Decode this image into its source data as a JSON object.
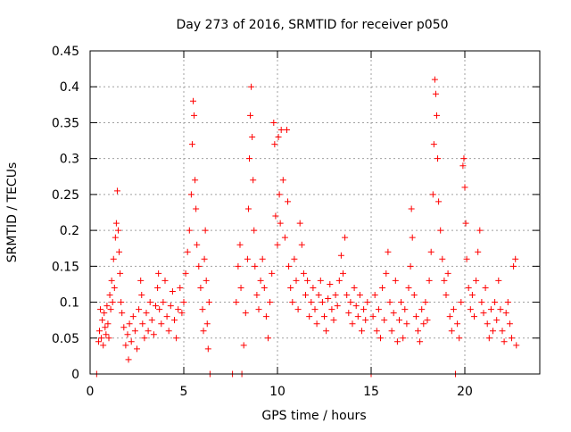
{
  "chart_data": {
    "type": "scatter",
    "title": "Day 273 of 2016, SRMTID for receiver p050",
    "xlabel": "GPS time / hours",
    "ylabel": "SRMTID / TECUs",
    "xlim": [
      0,
      24
    ],
    "ylim": [
      0,
      0.45
    ],
    "xticks": [
      0,
      5,
      10,
      15,
      20
    ],
    "yticks": [
      0,
      0.05,
      0.1,
      0.15,
      0.2,
      0.25,
      0.3,
      0.35,
      0.4,
      0.45
    ],
    "xtick_labels": [
      "0",
      "5",
      "10",
      "15",
      "20"
    ],
    "ytick_labels": [
      "0",
      "0.05",
      "0.1",
      "0.15",
      "0.2",
      "0.25",
      "0.3",
      "0.35",
      "0.4",
      "0.45"
    ],
    "grid": true,
    "marker": "+",
    "color": "#ff0000",
    "series": [
      {
        "name": "SRMTID",
        "points": [
          [
            0.35,
            0.0
          ],
          [
            0.45,
            0.045
          ],
          [
            0.5,
            0.06
          ],
          [
            0.55,
            0.09
          ],
          [
            0.6,
            0.05
          ],
          [
            0.65,
            0.075
          ],
          [
            0.7,
            0.04
          ],
          [
            0.75,
            0.085
          ],
          [
            0.8,
            0.065
          ],
          [
            0.85,
            0.055
          ],
          [
            0.9,
            0.095
          ],
          [
            0.95,
            0.07
          ],
          [
            1.0,
            0.05
          ],
          [
            1.05,
            0.11
          ],
          [
            1.1,
            0.09
          ],
          [
            1.15,
            0.13
          ],
          [
            1.2,
            0.1
          ],
          [
            1.25,
            0.16
          ],
          [
            1.3,
            0.12
          ],
          [
            1.35,
            0.19
          ],
          [
            1.4,
            0.21
          ],
          [
            1.45,
            0.255
          ],
          [
            1.5,
            0.2
          ],
          [
            1.55,
            0.17
          ],
          [
            1.6,
            0.14
          ],
          [
            1.65,
            0.1
          ],
          [
            1.7,
            0.085
          ],
          [
            1.8,
            0.065
          ],
          [
            1.9,
            0.04
          ],
          [
            2.0,
            0.055
          ],
          [
            2.05,
            0.02
          ],
          [
            2.1,
            0.07
          ],
          [
            2.2,
            0.045
          ],
          [
            2.3,
            0.08
          ],
          [
            2.4,
            0.06
          ],
          [
            2.5,
            0.035
          ],
          [
            2.6,
            0.09
          ],
          [
            2.7,
            0.13
          ],
          [
            2.75,
            0.11
          ],
          [
            2.8,
            0.07
          ],
          [
            2.9,
            0.05
          ],
          [
            3.0,
            0.085
          ],
          [
            3.1,
            0.06
          ],
          [
            3.2,
            0.1
          ],
          [
            3.3,
            0.075
          ],
          [
            3.4,
            0.055
          ],
          [
            3.5,
            0.095
          ],
          [
            3.6,
            0.12
          ],
          [
            3.65,
            0.14
          ],
          [
            3.7,
            0.09
          ],
          [
            3.8,
            0.07
          ],
          [
            3.9,
            0.1
          ],
          [
            4.0,
            0.13
          ],
          [
            4.1,
            0.08
          ],
          [
            4.2,
            0.06
          ],
          [
            4.3,
            0.095
          ],
          [
            4.4,
            0.115
          ],
          [
            4.5,
            0.075
          ],
          [
            4.6,
            0.05
          ],
          [
            4.7,
            0.09
          ],
          [
            4.8,
            0.12
          ],
          [
            4.9,
            0.085
          ],
          [
            5.0,
            0.1
          ],
          [
            5.1,
            0.14
          ],
          [
            5.2,
            0.17
          ],
          [
            5.3,
            0.2
          ],
          [
            5.4,
            0.25
          ],
          [
            5.45,
            0.32
          ],
          [
            5.5,
            0.38
          ],
          [
            5.55,
            0.36
          ],
          [
            5.6,
            0.27
          ],
          [
            5.65,
            0.23
          ],
          [
            5.7,
            0.18
          ],
          [
            5.8,
            0.15
          ],
          [
            5.9,
            0.12
          ],
          [
            6.0,
            0.09
          ],
          [
            6.05,
            0.06
          ],
          [
            6.1,
            0.16
          ],
          [
            6.15,
            0.2
          ],
          [
            6.2,
            0.13
          ],
          [
            6.25,
            0.07
          ],
          [
            6.3,
            0.035
          ],
          [
            6.35,
            0.1
          ],
          [
            6.4,
            0.0
          ],
          [
            7.6,
            0.0
          ],
          [
            7.8,
            0.1
          ],
          [
            7.9,
            0.15
          ],
          [
            8.0,
            0.18
          ],
          [
            8.05,
            0.12
          ],
          [
            8.1,
            0.0
          ],
          [
            8.2,
            0.04
          ],
          [
            8.3,
            0.085
          ],
          [
            8.4,
            0.16
          ],
          [
            8.45,
            0.23
          ],
          [
            8.5,
            0.3
          ],
          [
            8.55,
            0.36
          ],
          [
            8.6,
            0.4
          ],
          [
            8.65,
            0.33
          ],
          [
            8.7,
            0.27
          ],
          [
            8.75,
            0.2
          ],
          [
            8.8,
            0.15
          ],
          [
            8.9,
            0.11
          ],
          [
            9.0,
            0.09
          ],
          [
            9.1,
            0.13
          ],
          [
            9.2,
            0.16
          ],
          [
            9.3,
            0.12
          ],
          [
            9.4,
            0.08
          ],
          [
            9.5,
            0.05
          ],
          [
            9.6,
            0.1
          ],
          [
            9.7,
            0.14
          ],
          [
            9.8,
            0.35
          ],
          [
            9.85,
            0.32
          ],
          [
            9.9,
            0.22
          ],
          [
            10.0,
            0.18
          ],
          [
            10.05,
            0.33
          ],
          [
            10.1,
            0.25
          ],
          [
            10.15,
            0.21
          ],
          [
            10.2,
            0.34
          ],
          [
            10.3,
            0.27
          ],
          [
            10.4,
            0.19
          ],
          [
            10.5,
            0.34
          ],
          [
            10.55,
            0.24
          ],
          [
            10.6,
            0.15
          ],
          [
            10.7,
            0.12
          ],
          [
            10.8,
            0.1
          ],
          [
            10.9,
            0.16
          ],
          [
            11.0,
            0.13
          ],
          [
            11.1,
            0.09
          ],
          [
            11.2,
            0.21
          ],
          [
            11.3,
            0.18
          ],
          [
            11.4,
            0.14
          ],
          [
            11.5,
            0.11
          ],
          [
            11.6,
            0.13
          ],
          [
            11.7,
            0.08
          ],
          [
            11.8,
            0.1
          ],
          [
            11.9,
            0.12
          ],
          [
            12.0,
            0.09
          ],
          [
            12.1,
            0.07
          ],
          [
            12.2,
            0.11
          ],
          [
            12.3,
            0.13
          ],
          [
            12.4,
            0.1
          ],
          [
            12.5,
            0.08
          ],
          [
            12.6,
            0.06
          ],
          [
            12.7,
            0.105
          ],
          [
            12.8,
            0.125
          ],
          [
            12.9,
            0.09
          ],
          [
            13.0,
            0.075
          ],
          [
            13.1,
            0.11
          ],
          [
            13.2,
            0.095
          ],
          [
            13.3,
            0.13
          ],
          [
            13.4,
            0.165
          ],
          [
            13.5,
            0.14
          ],
          [
            13.6,
            0.19
          ],
          [
            13.7,
            0.11
          ],
          [
            13.8,
            0.085
          ],
          [
            13.9,
            0.1
          ],
          [
            14.0,
            0.07
          ],
          [
            14.1,
            0.12
          ],
          [
            14.2,
            0.095
          ],
          [
            14.3,
            0.08
          ],
          [
            14.4,
            0.11
          ],
          [
            14.5,
            0.06
          ],
          [
            14.6,
            0.09
          ],
          [
            14.7,
            0.075
          ],
          [
            14.8,
            0.1
          ],
          [
            15.0,
            0.0
          ],
          [
            15.1,
            0.08
          ],
          [
            15.2,
            0.11
          ],
          [
            15.3,
            0.06
          ],
          [
            15.4,
            0.09
          ],
          [
            15.5,
            0.05
          ],
          [
            15.6,
            0.12
          ],
          [
            15.7,
            0.075
          ],
          [
            15.8,
            0.14
          ],
          [
            15.9,
            0.17
          ],
          [
            16.0,
            0.1
          ],
          [
            16.1,
            0.06
          ],
          [
            16.2,
            0.085
          ],
          [
            16.3,
            0.13
          ],
          [
            16.4,
            0.045
          ],
          [
            16.5,
            0.075
          ],
          [
            16.6,
            0.1
          ],
          [
            16.7,
            0.05
          ],
          [
            16.8,
            0.09
          ],
          [
            16.9,
            0.07
          ],
          [
            17.0,
            0.12
          ],
          [
            17.1,
            0.15
          ],
          [
            17.15,
            0.23
          ],
          [
            17.2,
            0.19
          ],
          [
            17.3,
            0.11
          ],
          [
            17.4,
            0.08
          ],
          [
            17.5,
            0.06
          ],
          [
            17.6,
            0.045
          ],
          [
            17.7,
            0.09
          ],
          [
            17.8,
            0.07
          ],
          [
            17.9,
            0.1
          ],
          [
            18.0,
            0.075
          ],
          [
            18.1,
            0.13
          ],
          [
            18.2,
            0.17
          ],
          [
            18.3,
            0.25
          ],
          [
            18.35,
            0.32
          ],
          [
            18.4,
            0.41
          ],
          [
            18.45,
            0.39
          ],
          [
            18.5,
            0.36
          ],
          [
            18.55,
            0.3
          ],
          [
            18.6,
            0.24
          ],
          [
            18.7,
            0.2
          ],
          [
            18.8,
            0.16
          ],
          [
            18.9,
            0.13
          ],
          [
            19.0,
            0.11
          ],
          [
            19.1,
            0.14
          ],
          [
            19.2,
            0.08
          ],
          [
            19.3,
            0.06
          ],
          [
            19.4,
            0.09
          ],
          [
            19.5,
            0.0
          ],
          [
            19.6,
            0.07
          ],
          [
            19.7,
            0.05
          ],
          [
            19.8,
            0.1
          ],
          [
            19.9,
            0.29
          ],
          [
            19.95,
            0.3
          ],
          [
            20.0,
            0.26
          ],
          [
            20.05,
            0.21
          ],
          [
            20.1,
            0.16
          ],
          [
            20.2,
            0.12
          ],
          [
            20.3,
            0.09
          ],
          [
            20.4,
            0.11
          ],
          [
            20.5,
            0.08
          ],
          [
            20.6,
            0.13
          ],
          [
            20.7,
            0.17
          ],
          [
            20.8,
            0.2
          ],
          [
            20.9,
            0.1
          ],
          [
            21.0,
            0.085
          ],
          [
            21.1,
            0.12
          ],
          [
            21.2,
            0.07
          ],
          [
            21.3,
            0.05
          ],
          [
            21.4,
            0.09
          ],
          [
            21.5,
            0.06
          ],
          [
            21.6,
            0.1
          ],
          [
            21.7,
            0.075
          ],
          [
            21.8,
            0.13
          ],
          [
            21.9,
            0.09
          ],
          [
            22.0,
            0.06
          ],
          [
            22.1,
            0.045
          ],
          [
            22.2,
            0.085
          ],
          [
            22.3,
            0.1
          ],
          [
            22.4,
            0.07
          ],
          [
            22.5,
            0.05
          ],
          [
            22.6,
            0.15
          ],
          [
            22.7,
            0.16
          ],
          [
            22.75,
            0.04
          ]
        ]
      }
    ]
  }
}
